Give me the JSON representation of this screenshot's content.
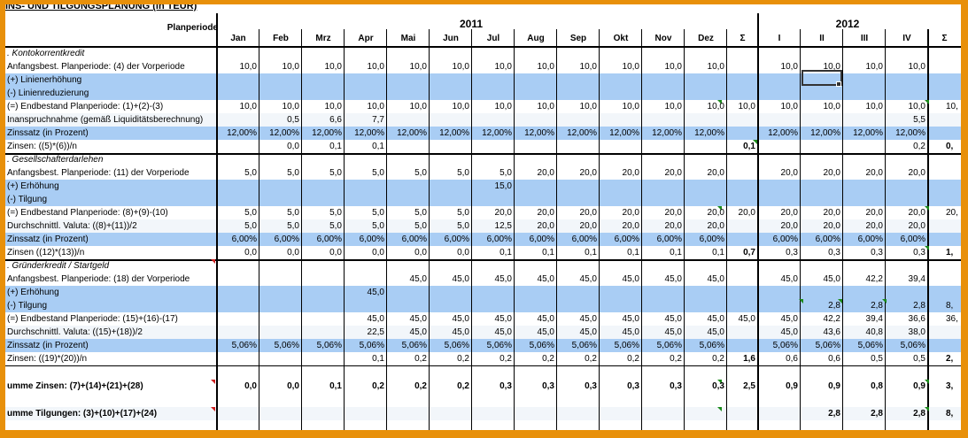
{
  "title": "INS- UND TILGUNGSPLANUNG (in TEUR)",
  "header": {
    "label": "Planperiode",
    "years": [
      "2011",
      "2012"
    ],
    "months": [
      "Jan",
      "Feb",
      "Mrz",
      "Apr",
      "Mai",
      "Jun",
      "Jul",
      "Aug",
      "Sep",
      "Okt",
      "Nov",
      "Dez"
    ],
    "sum": "Σ",
    "quarters": [
      "I",
      "II",
      "III",
      "IV"
    ],
    "sum2": "Σ"
  },
  "rows": [
    {
      "label": ". Kontokorrentkredit",
      "type": "section",
      "bg": "white",
      "m": [
        "",
        "",
        "",
        "",
        "",
        "",
        "",
        "",
        "",
        "",
        "",
        ""
      ],
      "s": "",
      "q": [
        "",
        "",
        "",
        ""
      ],
      "s2": ""
    },
    {
      "label": "Anfangsbest. Planperiode: (4) der Vorperiode",
      "type": "normal",
      "bg": "white",
      "m": [
        "10,0",
        "10,0",
        "10,0",
        "10,0",
        "10,0",
        "10,0",
        "10,0",
        "10,0",
        "10,0",
        "10,0",
        "10,0",
        "10,0"
      ],
      "s": "",
      "q": [
        "10,0",
        "10,0",
        "10,0",
        "10,0"
      ],
      "s2": ""
    },
    {
      "label": "(+) Linienerhöhung",
      "type": "input",
      "bg": "blue",
      "m": [
        "",
        "",
        "",
        "",
        "",
        "",
        "",
        "",
        "",
        "",
        "",
        ""
      ],
      "s": "",
      "q": [
        "",
        "",
        "",
        ""
      ],
      "s2": ""
    },
    {
      "label": "(-) Linienreduzierung",
      "type": "input",
      "bg": "blue",
      "m": [
        "",
        "",
        "",
        "",
        "",
        "",
        "",
        "",
        "",
        "",
        "",
        ""
      ],
      "s": "",
      "q": [
        "",
        "",
        "",
        ""
      ],
      "s2": ""
    },
    {
      "label": "(=) Endbestand Planperiode: (1)+(2)-(3)",
      "type": "normal",
      "bg": "white",
      "m": [
        "10,0",
        "10,0",
        "10,0",
        "10,0",
        "10,0",
        "10,0",
        "10,0",
        "10,0",
        "10,0",
        "10,0",
        "10,0",
        "10,0"
      ],
      "s": "10,0",
      "q": [
        "10,0",
        "10,0",
        "10,0",
        "10,0"
      ],
      "s2": "10,"
    },
    {
      "label": "Inanspruchnahme (gemäß Liquiditätsberechnung)",
      "type": "normal",
      "bg": "mid",
      "m": [
        "",
        "0,5",
        "6,6",
        "7,7",
        "",
        "",
        "",
        "",
        "",
        "",
        "",
        ""
      ],
      "s": "",
      "q": [
        "",
        "",
        "",
        "5,5"
      ],
      "s2": ""
    },
    {
      "label": "Zinssatz (in Prozent)",
      "type": "input",
      "bg": "blue",
      "m": [
        "12,00%",
        "12,00%",
        "12,00%",
        "12,00%",
        "12,00%",
        "12,00%",
        "12,00%",
        "12,00%",
        "12,00%",
        "12,00%",
        "12,00%",
        "12,00%"
      ],
      "s": "",
      "q": [
        "12,00%",
        "12,00%",
        "12,00%",
        "12,00%"
      ],
      "s2": ""
    },
    {
      "label": "Zinsen: ((5)*(6))/n",
      "type": "total",
      "bg": "white",
      "m": [
        "",
        "0,0",
        "0,1",
        "0,1",
        "",
        "",
        "",
        "",
        "",
        "",
        "",
        ""
      ],
      "s": "0,1",
      "q": [
        "",
        "",
        "",
        "0,2"
      ],
      "s2": "0,"
    },
    {
      "label": ". Gesellschafterdarlehen",
      "type": "section",
      "bg": "white",
      "m": [
        "",
        "",
        "",
        "",
        "",
        "",
        "",
        "",
        "",
        "",
        "",
        ""
      ],
      "s": "",
      "q": [
        "",
        "",
        "",
        ""
      ],
      "s2": ""
    },
    {
      "label": "Anfangsbest. Planperiode: (11) der Vorperiode",
      "type": "normal",
      "bg": "white",
      "m": [
        "5,0",
        "5,0",
        "5,0",
        "5,0",
        "5,0",
        "5,0",
        "5,0",
        "20,0",
        "20,0",
        "20,0",
        "20,0",
        "20,0"
      ],
      "s": "",
      "q": [
        "20,0",
        "20,0",
        "20,0",
        "20,0"
      ],
      "s2": ""
    },
    {
      "label": "(+) Erhöhung",
      "type": "input",
      "bg": "blue",
      "m": [
        "",
        "",
        "",
        "",
        "",
        "",
        "15,0",
        "",
        "",
        "",
        "",
        ""
      ],
      "s": "",
      "q": [
        "",
        "",
        "",
        ""
      ],
      "s2": ""
    },
    {
      "label": "(-) Tilgung",
      "type": "input",
      "bg": "blue",
      "m": [
        "",
        "",
        "",
        "",
        "",
        "",
        "",
        "",
        "",
        "",
        "",
        ""
      ],
      "s": "",
      "q": [
        "",
        "",
        "",
        ""
      ],
      "s2": ""
    },
    {
      "label": "(=) Endbestand Planperiode: (8)+(9)-(10)",
      "type": "normal",
      "bg": "white",
      "m": [
        "5,0",
        "5,0",
        "5,0",
        "5,0",
        "5,0",
        "5,0",
        "20,0",
        "20,0",
        "20,0",
        "20,0",
        "20,0",
        "20,0"
      ],
      "s": "20,0",
      "q": [
        "20,0",
        "20,0",
        "20,0",
        "20,0"
      ],
      "s2": "20,"
    },
    {
      "label": "Durchschnittl. Valuta: ((8)+(11))/2",
      "type": "normal",
      "bg": "mid",
      "m": [
        "5,0",
        "5,0",
        "5,0",
        "5,0",
        "5,0",
        "5,0",
        "12,5",
        "20,0",
        "20,0",
        "20,0",
        "20,0",
        "20,0"
      ],
      "s": "",
      "q": [
        "20,0",
        "20,0",
        "20,0",
        "20,0"
      ],
      "s2": ""
    },
    {
      "label": "Zinssatz (in Prozent)",
      "type": "input",
      "bg": "blue",
      "m": [
        "6,00%",
        "6,00%",
        "6,00%",
        "6,00%",
        "6,00%",
        "6,00%",
        "6,00%",
        "6,00%",
        "6,00%",
        "6,00%",
        "6,00%",
        "6,00%"
      ],
      "s": "",
      "q": [
        "6,00%",
        "6,00%",
        "6,00%",
        "6,00%"
      ],
      "s2": ""
    },
    {
      "label": "Zinsen ((12)*(13))/n",
      "type": "total",
      "bg": "white",
      "m": [
        "0,0",
        "0,0",
        "0,0",
        "0,0",
        "0,0",
        "0,0",
        "0,1",
        "0,1",
        "0,1",
        "0,1",
        "0,1",
        "0,1"
      ],
      "s": "0,7",
      "q": [
        "0,3",
        "0,3",
        "0,3",
        "0,3"
      ],
      "s2": "1,"
    },
    {
      "label": ". Gründerkredit / Startgeld",
      "type": "section",
      "bg": "white",
      "m": [
        "",
        "",
        "",
        "",
        "",
        "",
        "",
        "",
        "",
        "",
        "",
        ""
      ],
      "s": "",
      "q": [
        "",
        "",
        "",
        ""
      ],
      "s2": ""
    },
    {
      "label": "Anfangsbest. Planperiode: (18) der Vorperiode",
      "type": "normal",
      "bg": "white",
      "m": [
        "",
        "",
        "",
        "",
        "45,0",
        "45,0",
        "45,0",
        "45,0",
        "45,0",
        "45,0",
        "45,0",
        "45,0"
      ],
      "s": "",
      "q": [
        "45,0",
        "45,0",
        "42,2",
        "39,4"
      ],
      "s2": ""
    },
    {
      "label": "(+) Erhöhung",
      "type": "input",
      "bg": "blue",
      "m": [
        "",
        "",
        "",
        "45,0",
        "",
        "",
        "",
        "",
        "",
        "",
        "",
        ""
      ],
      "s": "",
      "q": [
        "",
        "",
        "",
        ""
      ],
      "s2": ""
    },
    {
      "label": "(-) Tilgung",
      "type": "input",
      "bg": "blue",
      "m": [
        "",
        "",
        "",
        "",
        "",
        "",
        "",
        "",
        "",
        "",
        "",
        ""
      ],
      "s": "",
      "q": [
        "",
        "2,8",
        "2,8",
        "2,8"
      ],
      "s2": "8,"
    },
    {
      "label": "(=) Endbestand Planperiode: (15)+(16)-(17)",
      "type": "normal",
      "bg": "white",
      "m": [
        "",
        "",
        "",
        "45,0",
        "45,0",
        "45,0",
        "45,0",
        "45,0",
        "45,0",
        "45,0",
        "45,0",
        "45,0"
      ],
      "s": "45,0",
      "q": [
        "45,0",
        "42,2",
        "39,4",
        "36,6"
      ],
      "s2": "36,"
    },
    {
      "label": "Durchschnittl. Valuta: ((15)+(18))/2",
      "type": "normal",
      "bg": "mid",
      "m": [
        "",
        "",
        "",
        "22,5",
        "45,0",
        "45,0",
        "45,0",
        "45,0",
        "45,0",
        "45,0",
        "45,0",
        "45,0"
      ],
      "s": "",
      "q": [
        "45,0",
        "43,6",
        "40,8",
        "38,0"
      ],
      "s2": ""
    },
    {
      "label": "Zinssatz (in Prozent)",
      "type": "input",
      "bg": "blue",
      "m": [
        "5,06%",
        "5,06%",
        "5,06%",
        "5,06%",
        "5,06%",
        "5,06%",
        "5,06%",
        "5,06%",
        "5,06%",
        "5,06%",
        "5,06%",
        "5,06%"
      ],
      "s": "",
      "q": [
        "5,06%",
        "5,06%",
        "5,06%",
        "5,06%"
      ],
      "s2": ""
    },
    {
      "label": "Zinsen: ((19)*(20))/n",
      "type": "total",
      "bg": "white",
      "m": [
        "",
        "",
        "",
        "0,1",
        "0,2",
        "0,2",
        "0,2",
        "0,2",
        "0,2",
        "0,2",
        "0,2",
        "0,2"
      ],
      "s": "1,6",
      "q": [
        "0,6",
        "0,6",
        "0,5",
        "0,5"
      ],
      "s2": "2,"
    },
    {
      "label": "",
      "type": "spacer",
      "bg": "white",
      "m": [
        "",
        "",
        "",
        "",
        "",
        "",
        "",
        "",
        "",
        "",
        "",
        ""
      ],
      "s": "",
      "q": [
        "",
        "",
        "",
        ""
      ],
      "s2": ""
    },
    {
      "label": "umme Zinsen: (7)+(14)+(21)+(28)",
      "type": "sum",
      "bg": "white",
      "m": [
        "0,0",
        "0,0",
        "0,1",
        "0,2",
        "0,2",
        "0,2",
        "0,3",
        "0,3",
        "0,3",
        "0,3",
        "0,3",
        "0,3"
      ],
      "s": "2,5",
      "q": [
        "0,9",
        "0,9",
        "0,8",
        "0,9"
      ],
      "s2": "3,"
    },
    {
      "label": "",
      "type": "spacer",
      "bg": "white",
      "m": [
        "",
        "",
        "",
        "",
        "",
        "",
        "",
        "",
        "",
        "",
        "",
        ""
      ],
      "s": "",
      "q": [
        "",
        "",
        "",
        ""
      ],
      "s2": ""
    },
    {
      "label": "umme Tilgungen: (3)+(10)+(17)+(24)",
      "type": "sum",
      "bg": "mid",
      "m": [
        "",
        "",
        "",
        "",
        "",
        "",
        "",
        "",
        "",
        "",
        "",
        ""
      ],
      "s": "",
      "q": [
        "",
        "2,8",
        "2,8",
        "2,8"
      ],
      "s2": "8,"
    }
  ]
}
